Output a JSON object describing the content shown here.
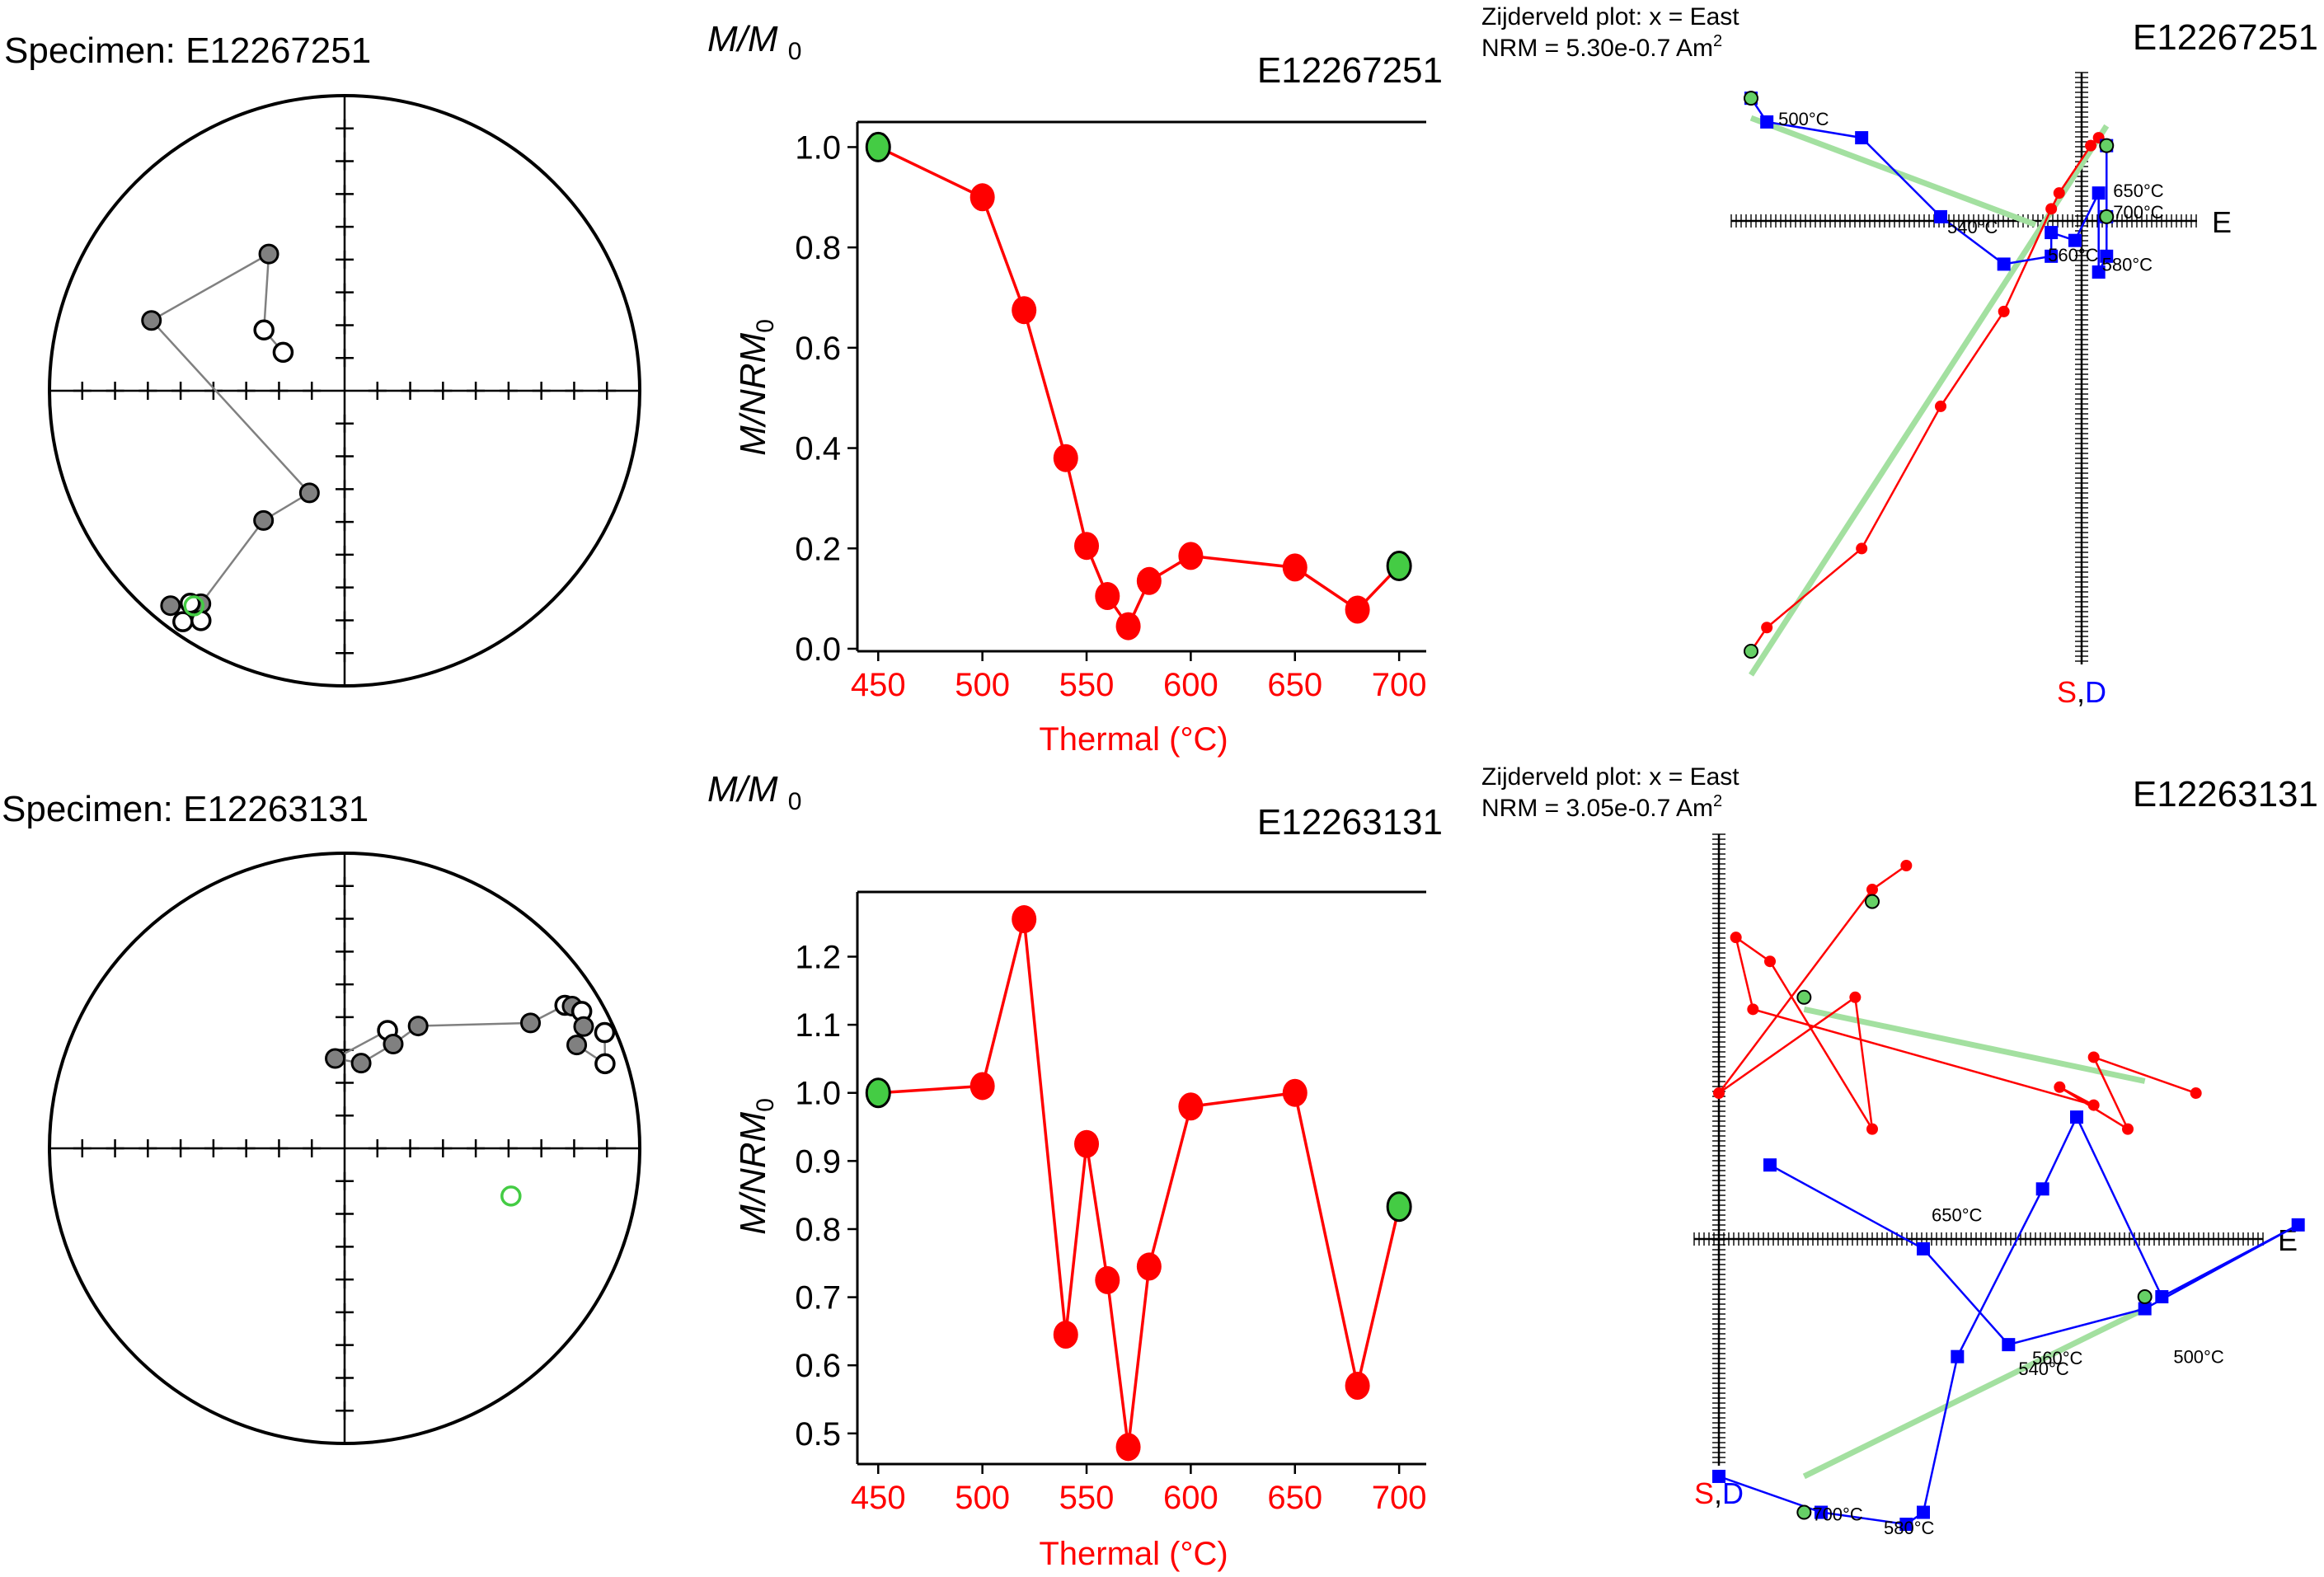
{
  "chart_data": [
    {
      "type": "scatter",
      "subtype": "equal-area stereonet",
      "title": "Specimen: E12267251",
      "points": [
        {
          "dec": 302,
          "inc": -70,
          "hemi": "up"
        },
        {
          "dec": 307,
          "inc": -62,
          "hemi": "up"
        },
        {
          "dec": 331,
          "inc": -46,
          "hemi": "down"
        },
        {
          "dec": 290,
          "inc": -31,
          "hemi": "down"
        },
        {
          "dec": 199,
          "inc": 60,
          "hemi": "down"
        },
        {
          "dec": 212,
          "inc": 47,
          "hemi": "down"
        },
        {
          "dec": 214,
          "inc": 14,
          "hemi": "down"
        },
        {
          "dec": 216,
          "inc": 12,
          "hemi": "up"
        },
        {
          "dec": 219,
          "inc": 7,
          "hemi": "down"
        },
        {
          "dec": 215,
          "inc": 5,
          "hemi": "up"
        },
        {
          "dec": 212,
          "inc": 9,
          "hemi": "up"
        }
      ],
      "green_point": {
        "dec": 215,
        "inc": 12,
        "hemi": "up"
      },
      "colors": {
        "line": "#808080",
        "filled": "#808080",
        "green": "#44cc44"
      }
    },
    {
      "type": "line",
      "title": "E12267251",
      "ylabel_top": "M/M0",
      "ylabel": "M/NRM0",
      "xlabel": "Thermal (°C)",
      "xlim": [
        440,
        713
      ],
      "ylim": [
        -0.005,
        1.05
      ],
      "xticks": [
        450,
        500,
        550,
        600,
        650,
        700
      ],
      "yticks": [
        "0.0",
        "0.2",
        "0.4",
        "0.6",
        "0.8",
        "1.0"
      ],
      "x": [
        450,
        500,
        520,
        540,
        550,
        560,
        570,
        580,
        600,
        650,
        680,
        700
      ],
      "y": [
        1.0,
        0.9,
        0.675,
        0.38,
        0.205,
        0.105,
        0.045,
        0.135,
        0.185,
        0.162,
        0.078,
        0.165
      ],
      "green_ends": true,
      "color": "#ff0000"
    },
    {
      "type": "scatter",
      "subtype": "zijderveld",
      "title": "E12267251",
      "header": [
        "Zijderveld plot: x = East",
        "NRM = 5.30e-0.7 Am"
      ],
      "header_sup": "2",
      "axis_e": "E",
      "axis_s": "S",
      "axis_comma": ",",
      "axis_d": "D",
      "xlim": [
        -0.42,
        0.06
      ],
      "ylim": [
        -0.54,
        0.18
      ],
      "red_series": [
        [
          -0.42,
          -0.54
        ],
        [
          -0.4,
          -0.51
        ],
        [
          -0.28,
          -0.41
        ],
        [
          -0.18,
          -0.23
        ],
        [
          -0.1,
          -0.11
        ],
        [
          -0.04,
          0.02
        ],
        [
          -0.03,
          0.04
        ],
        [
          0.01,
          0.1
        ],
        [
          0.02,
          0.11
        ],
        [
          0.03,
          0.1
        ]
      ],
      "blue_series": [
        [
          -0.42,
          0.16
        ],
        [
          -0.4,
          0.13
        ],
        [
          -0.28,
          0.11
        ],
        [
          -0.18,
          0.01
        ],
        [
          -0.1,
          -0.05
        ],
        [
          -0.04,
          -0.04
        ],
        [
          -0.04,
          -0.01
        ],
        [
          -0.01,
          -0.02
        ],
        [
          0.02,
          0.04
        ],
        [
          0.02,
          -0.06
        ],
        [
          0.03,
          -0.04
        ],
        [
          0.03,
          0.01
        ],
        [
          0.03,
          0.1
        ]
      ],
      "green_red": [
        [
          -0.42,
          -0.54
        ],
        [
          0.03,
          0.1
        ]
      ],
      "green_blue": [
        [
          -0.42,
          0.16
        ],
        [
          0.03,
          0.01
        ]
      ],
      "fit_lines": [
        [
          [
            -0.42,
            0.135
          ],
          [
            -0.06,
            0.0
          ]
        ],
        [
          [
            -0.42,
            -0.57
          ],
          [
            0.03,
            0.125
          ]
        ]
      ],
      "labels": [
        {
          "text": "500°C",
          "at": [
            -0.4,
            0.13
          ],
          "dx": 14,
          "dy": 4
        },
        {
          "text": "540°C",
          "at": [
            -0.18,
            0.01
          ],
          "dx": 8,
          "dy": 20
        },
        {
          "text": "560°C",
          "at": [
            -0.04,
            -0.04
          ],
          "dx": -4,
          "dy": 6
        },
        {
          "text": "580°C",
          "at": [
            0.02,
            -0.05
          ],
          "dx": 4,
          "dy": 8
        },
        {
          "text": "650°C",
          "at": [
            0.03,
            0.03
          ],
          "dx": 8,
          "dy": -5
        },
        {
          "text": "700°C",
          "at": [
            0.03,
            0.01
          ],
          "dx": 8,
          "dy": 2
        }
      ]
    },
    {
      "type": "scatter",
      "subtype": "equal-area stereonet",
      "title": "Specimen: E12263131",
      "points": [
        {
          "dec": 20,
          "inc": -55,
          "hemi": "up"
        },
        {
          "dec": 354,
          "inc": -65,
          "hemi": "down"
        },
        {
          "dec": 11,
          "inc": -66,
          "hemi": "down"
        },
        {
          "dec": 25,
          "inc": -58,
          "hemi": "down"
        },
        {
          "dec": 31,
          "inc": -50,
          "hemi": "down"
        },
        {
          "dec": 56,
          "inc": -25,
          "hemi": "down"
        },
        {
          "dec": 57,
          "inc": -12,
          "hemi": "up"
        },
        {
          "dec": 58,
          "inc": -10,
          "hemi": "down"
        },
        {
          "dec": 60,
          "inc": -8,
          "hemi": "up"
        },
        {
          "dec": 63,
          "inc": -10,
          "hemi": "down"
        },
        {
          "dec": 66,
          "inc": -15,
          "hemi": "down"
        },
        {
          "dec": 72,
          "inc": -8,
          "hemi": "up"
        },
        {
          "dec": 66,
          "inc": -4,
          "hemi": "up"
        }
      ],
      "green_point": {
        "dec": 106,
        "inc": -41,
        "hemi": "up"
      },
      "colors": {
        "line": "#808080",
        "filled": "#808080",
        "green": "#44cc44"
      }
    },
    {
      "type": "line",
      "title": "E12263131",
      "ylabel_top": "M/M0",
      "ylabel": "M/NRM0",
      "xlabel": "Thermal (°C)",
      "xlim": [
        440,
        713
      ],
      "ylim": [
        0.455,
        1.295
      ],
      "xticks": [
        450,
        500,
        550,
        600,
        650,
        700
      ],
      "yticks": [
        "0.5",
        "0.6",
        "0.7",
        "0.8",
        "0.9",
        "1.0",
        "1.1",
        "1.2"
      ],
      "x": [
        450,
        500,
        520,
        540,
        550,
        560,
        570,
        580,
        600,
        650,
        680,
        700
      ],
      "y": [
        1.0,
        1.01,
        1.255,
        0.645,
        0.925,
        0.725,
        0.48,
        0.745,
        0.98,
        1.0,
        0.57,
        0.833
      ],
      "green_ends": true,
      "color": "#ff0000"
    },
    {
      "type": "scatter",
      "subtype": "zijderveld",
      "title": "E12263131",
      "header": [
        "Zijderveld plot: x = East",
        "NRM = 3.05e-0.7 Am"
      ],
      "header_sup": "2",
      "axis_e": "E",
      "axis_s": "S",
      "axis_comma": ",",
      "axis_d": "D",
      "xlim": [
        0.0,
        0.3
      ],
      "ylim": [
        -0.17,
        0.36
      ],
      "red_series": [
        [
          0.11,
          0.36
        ],
        [
          0.09,
          0.34
        ],
        [
          0.0,
          0.17
        ],
        [
          0.08,
          0.25
        ],
        [
          0.09,
          0.14
        ],
        [
          0.03,
          0.28
        ],
        [
          0.01,
          0.3
        ],
        [
          0.02,
          0.24
        ],
        [
          0.22,
          0.16
        ],
        [
          0.2,
          0.175
        ],
        [
          0.24,
          0.14
        ],
        [
          0.22,
          0.2
        ],
        [
          0.28,
          0.17
        ]
      ],
      "blue_series": [
        [
          0.0,
          -0.15
        ],
        [
          0.06,
          -0.18
        ],
        [
          0.11,
          -0.19
        ],
        [
          0.12,
          -0.18
        ],
        [
          0.14,
          -0.05
        ],
        [
          0.19,
          0.09
        ],
        [
          0.21,
          0.15
        ],
        [
          0.26,
          0.0
        ],
        [
          0.34,
          0.06
        ],
        [
          0.25,
          -0.01
        ],
        [
          0.17,
          -0.04
        ],
        [
          0.12,
          0.04
        ],
        [
          0.03,
          0.11
        ]
      ],
      "green_red": [
        [
          0.09,
          0.33
        ],
        [
          0.05,
          0.25
        ]
      ],
      "green_blue": [
        [
          0.05,
          -0.18
        ],
        [
          0.25,
          0.0
        ]
      ],
      "fit_lines": [
        [
          [
            0.05,
            0.24
          ],
          [
            0.25,
            0.18
          ]
        ],
        [
          [
            0.05,
            -0.15
          ],
          [
            0.25,
            -0.01
          ]
        ]
      ],
      "labels": [
        {
          "text": "650°C",
          "at": [
            0.12,
            0.07
          ],
          "dx": 10,
          "dy": 10
        },
        {
          "text": "560°C",
          "at": [
            0.18,
            -0.04
          ],
          "dx": 8,
          "dy": 24
        },
        {
          "text": "540°C",
          "at": [
            0.17,
            -0.06
          ],
          "dx": 12,
          "dy": 8
        },
        {
          "text": "500°C",
          "at": [
            0.26,
            -0.05
          ],
          "dx": 14,
          "dy": 8
        },
        {
          "text": "700°C",
          "at": [
            0.05,
            -0.18
          ],
          "dx": 10,
          "dy": 10
        },
        {
          "text": "580°C",
          "at": [
            0.09,
            -0.19
          ],
          "dx": 14,
          "dy": 12
        }
      ]
    }
  ]
}
